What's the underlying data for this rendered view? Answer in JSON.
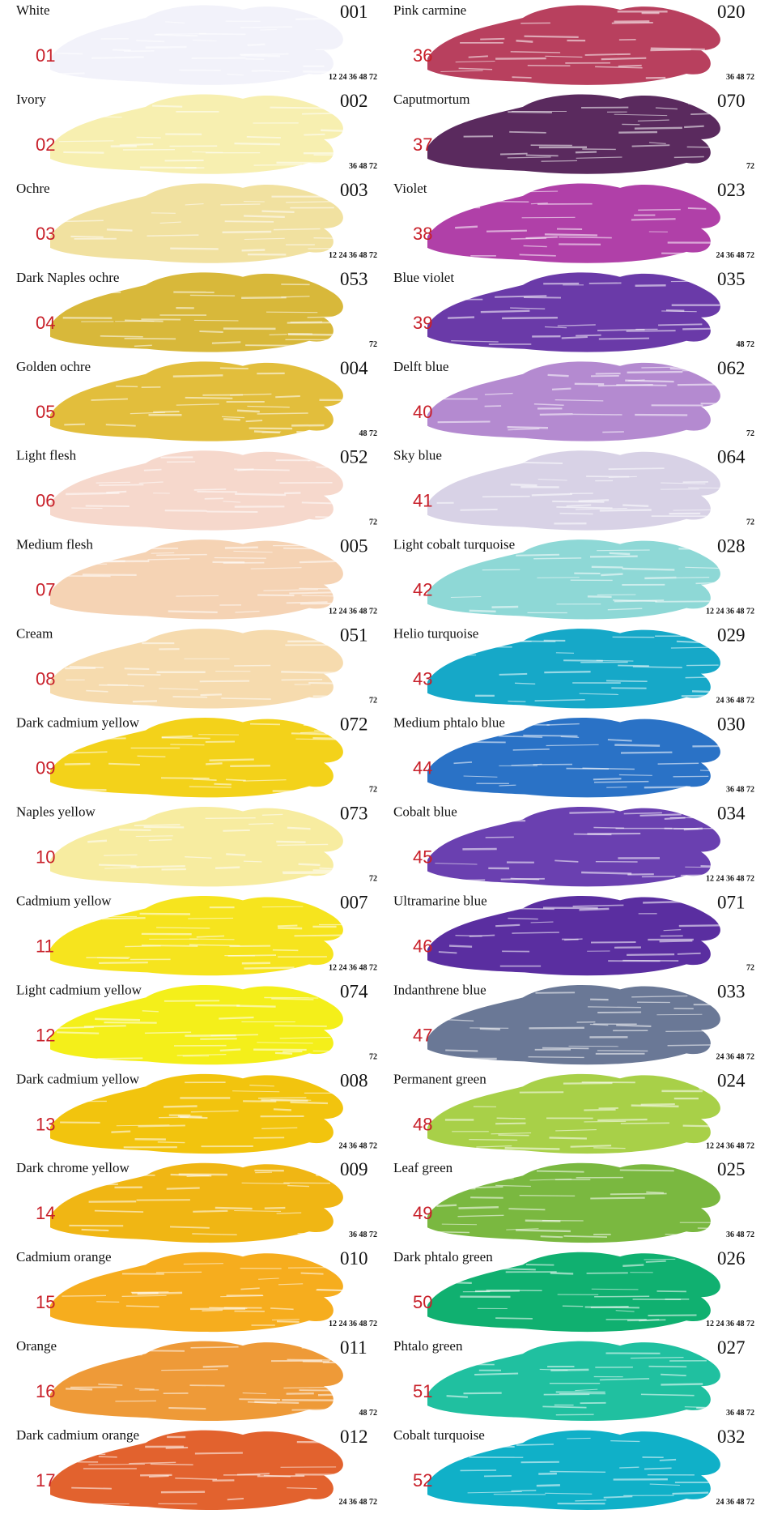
{
  "columns": [
    {
      "swatches": [
        {
          "name": "White",
          "code": "001",
          "number": "01",
          "sizes": "12 24 36 48 72",
          "color": "#f2f2fa"
        },
        {
          "name": "Ivory",
          "code": "002",
          "number": "02",
          "sizes": "36 48 72",
          "color": "#f7efb0"
        },
        {
          "name": "Ochre",
          "code": "003",
          "number": "03",
          "sizes": "12 24 36 48 72",
          "color": "#f1e1a0"
        },
        {
          "name": "Dark Naples ochre",
          "code": "053",
          "number": "04",
          "sizes": "72",
          "color": "#d8b83a"
        },
        {
          "name": "Golden ochre",
          "code": "004",
          "number": "05",
          "sizes": "48 72",
          "color": "#e2be3c"
        },
        {
          "name": "Light flesh",
          "code": "052",
          "number": "06",
          "sizes": "72",
          "color": "#f6d8cc"
        },
        {
          "name": "Medium flesh",
          "code": "005",
          "number": "07",
          "sizes": "12 24 36 48 72",
          "color": "#f5d3b4"
        },
        {
          "name": "Cream",
          "code": "051",
          "number": "08",
          "sizes": "72",
          "color": "#f6dbae"
        },
        {
          "name": "Dark cadmium yellow",
          "code": "072",
          "number": "09",
          "sizes": "72",
          "color": "#f3d21a"
        },
        {
          "name": "Naples yellow",
          "code": "073",
          "number": "10",
          "sizes": "72",
          "color": "#f7eca0"
        },
        {
          "name": "Cadmium yellow",
          "code": "007",
          "number": "11",
          "sizes": "12 24 36 48 72",
          "color": "#f6e41e"
        },
        {
          "name": "Light cadmium yellow",
          "code": "074",
          "number": "12",
          "sizes": "72",
          "color": "#f4ef1a"
        },
        {
          "name": "Dark cadmium yellow",
          "code": "008",
          "number": "13",
          "sizes": "24 36 48 72",
          "color": "#f2c40e"
        },
        {
          "name": "Dark chrome yellow",
          "code": "009",
          "number": "14",
          "sizes": "36 48 72",
          "color": "#f0b614"
        },
        {
          "name": "Cadmium orange",
          "code": "010",
          "number": "15",
          "sizes": "12 24 36 48 72",
          "color": "#f6ad1e"
        },
        {
          "name": "Orange",
          "code": "011",
          "number": "16",
          "sizes": "48 72",
          "color": "#ee9a38"
        },
        {
          "name": "Dark cadmium orange",
          "code": "012",
          "number": "17",
          "sizes": "24 36 48 72",
          "color": "#e2622e"
        }
      ]
    },
    {
      "swatches": [
        {
          "name": "Pink carmine",
          "code": "020",
          "number": "36",
          "sizes": "36 48 72",
          "color": "#b8405e"
        },
        {
          "name": "Caputmortum",
          "code": "070",
          "number": "37",
          "sizes": "72",
          "color": "#5a2a5e"
        },
        {
          "name": "Violet",
          "code": "023",
          "number": "38",
          "sizes": "24 36 48 72",
          "color": "#b040a8"
        },
        {
          "name": "Blue violet",
          "code": "035",
          "number": "39",
          "sizes": "48 72",
          "color": "#6a3aa8"
        },
        {
          "name": "Delft blue",
          "code": "062",
          "number": "40",
          "sizes": "72",
          "color": "#b48ad0"
        },
        {
          "name": "Sky blue",
          "code": "064",
          "number": "41",
          "sizes": "72",
          "color": "#d8d2e6"
        },
        {
          "name": "Light cobalt turquoise",
          "code": "028",
          "number": "42",
          "sizes": "12 24 36 48 72",
          "color": "#8ed8d6"
        },
        {
          "name": "Helio turquoise",
          "code": "029",
          "number": "43",
          "sizes": "24 36 48 72",
          "color": "#16a8c8"
        },
        {
          "name": "Medium phtalo blue",
          "code": "030",
          "number": "44",
          "sizes": "36 48 72",
          "color": "#2a72c6"
        },
        {
          "name": "Cobalt blue",
          "code": "034",
          "number": "45",
          "sizes": "12 24 36 48 72",
          "color": "#6a40b0"
        },
        {
          "name": "Ultramarine blue",
          "code": "071",
          "number": "46",
          "sizes": "72",
          "color": "#5a2ea0"
        },
        {
          "name": "Indanthrene blue",
          "code": "033",
          "number": "47",
          "sizes": "24 36 48 72",
          "color": "#6a7896"
        },
        {
          "name": "Permanent green",
          "code": "024",
          "number": "48",
          "sizes": "12 24 36 48 72",
          "color": "#a8d048"
        },
        {
          "name": "Leaf green",
          "code": "025",
          "number": "49",
          "sizes": "36 48 72",
          "color": "#7ab840"
        },
        {
          "name": "Dark phtalo green",
          "code": "026",
          "number": "50",
          "sizes": "12 24 36 48 72",
          "color": "#10b070"
        },
        {
          "name": "Phtalo green",
          "code": "027",
          "number": "51",
          "sizes": "36 48 72",
          "color": "#20c0a0"
        },
        {
          "name": "Cobalt turquoise",
          "code": "032",
          "number": "52",
          "sizes": "24 36 48 72",
          "color": "#10b0c8"
        }
      ]
    }
  ]
}
